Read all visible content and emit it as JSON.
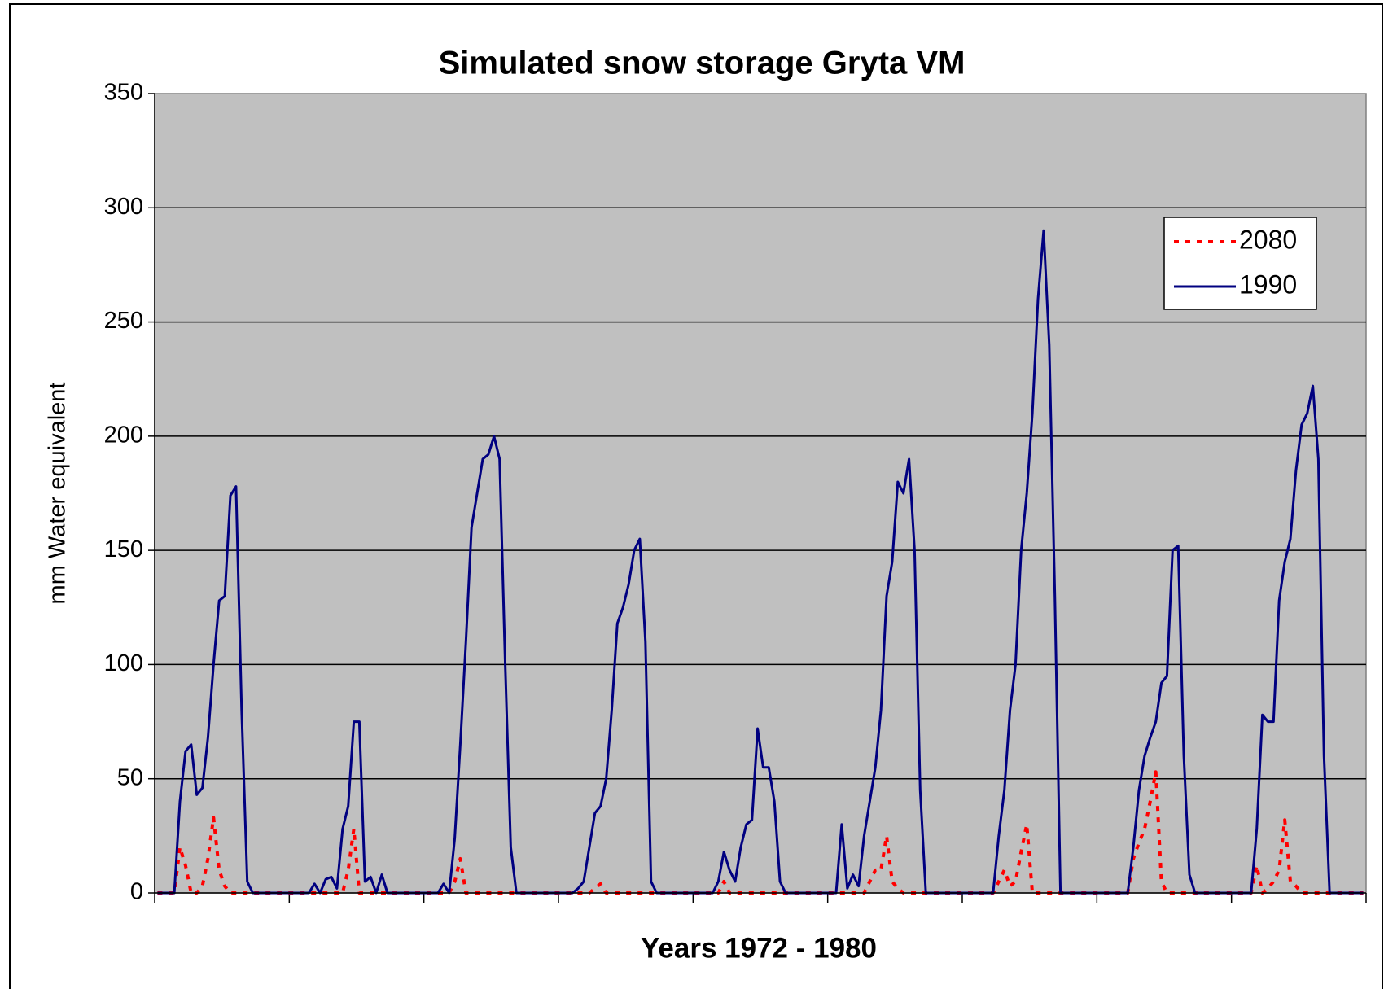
{
  "chart_data": {
    "type": "line",
    "title": "Simulated snow storage Gryta VM",
    "x_label": "Years 1972 - 1980",
    "y_label": "mm Water equivalent",
    "ylim": [
      0,
      350
    ],
    "yticks": [
      0,
      50,
      100,
      150,
      200,
      250,
      300,
      350
    ],
    "grid": true,
    "legend_position": "upper right",
    "plot_background": "#c0c0c0",
    "series": [
      {
        "name": "2080",
        "color": "#ff0000",
        "line_style": "dotted",
        "values": [
          0,
          0,
          0,
          0,
          20,
          12,
          0,
          0,
          3,
          15,
          33,
          10,
          3,
          0,
          0,
          0,
          0,
          0,
          0,
          0,
          0,
          0,
          0,
          0,
          0,
          0,
          0,
          0,
          0,
          0,
          0,
          0,
          0,
          0,
          10,
          28,
          0,
          0,
          0,
          0,
          0,
          0,
          0,
          0,
          0,
          0,
          0,
          0,
          0,
          0,
          0,
          0,
          0,
          5,
          15,
          0,
          0,
          0,
          0,
          0,
          0,
          0,
          0,
          0,
          0,
          0,
          0,
          0,
          0,
          0,
          0,
          0,
          0,
          0,
          0,
          0,
          0,
          0,
          2,
          4,
          0,
          0,
          0,
          0,
          0,
          0,
          0,
          0,
          0,
          0,
          0,
          0,
          0,
          0,
          0,
          0,
          0,
          0,
          0,
          0,
          0,
          5,
          0,
          0,
          0,
          0,
          0,
          0,
          0,
          0,
          0,
          0,
          0,
          0,
          0,
          0,
          0,
          0,
          0,
          0,
          0,
          0,
          0,
          0,
          0,
          0,
          0,
          5,
          10,
          10,
          25,
          5,
          2,
          0,
          0,
          0,
          0,
          0,
          0,
          0,
          0,
          0,
          0,
          0,
          0,
          0,
          0,
          0,
          0,
          0,
          5,
          10,
          3,
          5,
          18,
          30,
          0,
          0,
          0,
          0,
          0,
          0,
          0,
          0,
          0,
          0,
          0,
          0,
          0,
          0,
          0,
          0,
          0,
          0,
          15,
          22,
          28,
          40,
          53,
          5,
          0,
          0,
          0,
          0,
          0,
          0,
          0,
          0,
          0,
          0,
          0,
          0,
          0,
          0,
          0,
          0,
          12,
          0,
          2,
          5,
          10,
          32,
          5,
          3,
          0,
          0,
          0,
          0,
          0,
          0,
          0,
          0,
          0,
          0,
          0,
          0
        ]
      },
      {
        "name": "1990",
        "color": "#000080",
        "line_style": "solid",
        "values": [
          0,
          0,
          0,
          0,
          40,
          62,
          65,
          43,
          46,
          68,
          100,
          128,
          130,
          174,
          178,
          80,
          5,
          0,
          0,
          0,
          0,
          0,
          0,
          0,
          0,
          0,
          0,
          0,
          4,
          0,
          6,
          7,
          2,
          28,
          38,
          75,
          75,
          5,
          7,
          0,
          8,
          0,
          0,
          0,
          0,
          0,
          0,
          0,
          0,
          0,
          0,
          4,
          0,
          24,
          65,
          110,
          160,
          175,
          190,
          192,
          200,
          190,
          100,
          20,
          0,
          0,
          0,
          0,
          0,
          0,
          0,
          0,
          0,
          0,
          0,
          2,
          5,
          20,
          35,
          38,
          50,
          80,
          118,
          125,
          135,
          150,
          155,
          110,
          5,
          0,
          0,
          0,
          0,
          0,
          0,
          0,
          0,
          0,
          0,
          0,
          5,
          18,
          10,
          5,
          20,
          30,
          32,
          72,
          55,
          55,
          40,
          5,
          0,
          0,
          0,
          0,
          0,
          0,
          0,
          0,
          0,
          0,
          30,
          2,
          8,
          3,
          25,
          40,
          55,
          80,
          130,
          145,
          180,
          175,
          190,
          150,
          45,
          0,
          0,
          0,
          0,
          0,
          0,
          0,
          0,
          0,
          0,
          0,
          0,
          0,
          25,
          45,
          80,
          100,
          150,
          175,
          210,
          260,
          290,
          240,
          130,
          0,
          0,
          0,
          0,
          0,
          0,
          0,
          0,
          0,
          0,
          0,
          0,
          0,
          20,
          45,
          60,
          68,
          75,
          92,
          95,
          150,
          152,
          60,
          8,
          0,
          0,
          0,
          0,
          0,
          0,
          0,
          0,
          0,
          0,
          0,
          28,
          78,
          75,
          75,
          128,
          145,
          155,
          185,
          205,
          210,
          222,
          190,
          60,
          0,
          0,
          0,
          0,
          0,
          0,
          0
        ]
      }
    ]
  }
}
